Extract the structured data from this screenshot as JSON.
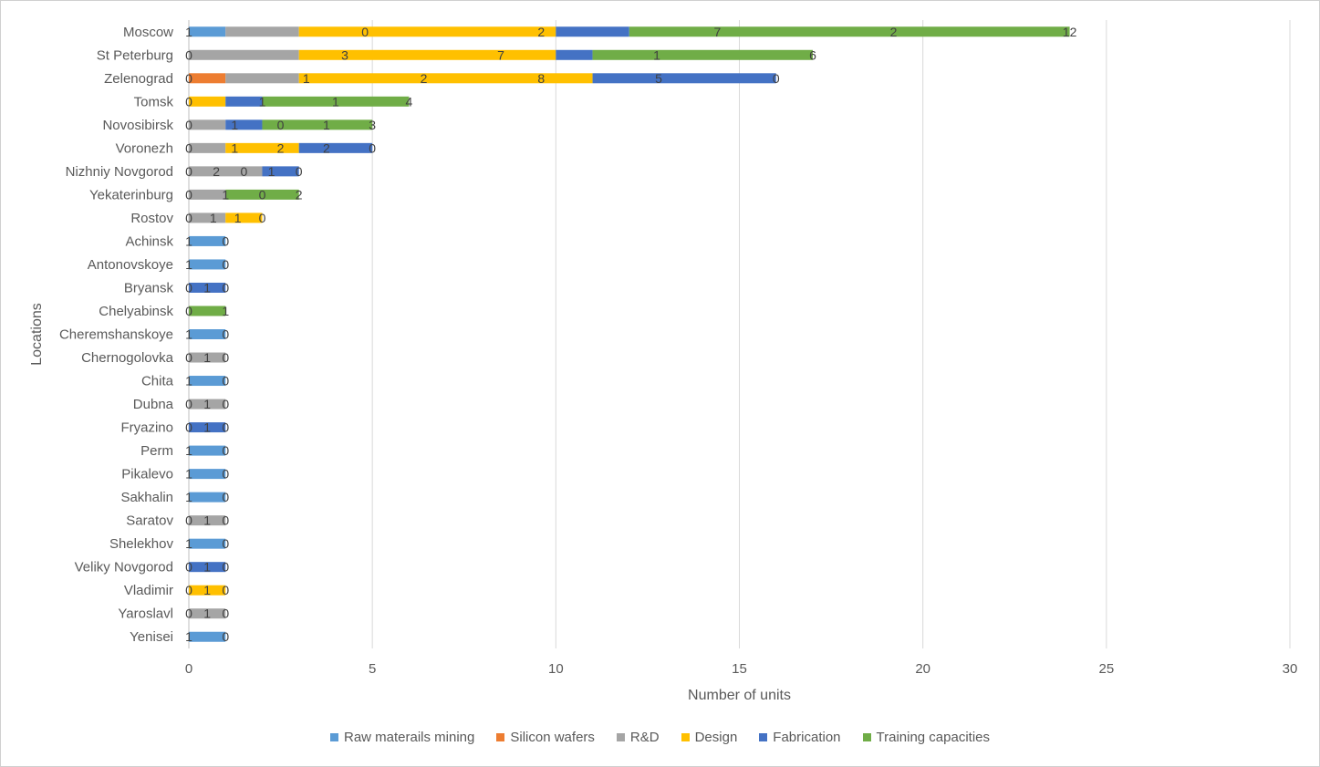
{
  "chart_data": {
    "type": "bar",
    "orientation": "horizontal",
    "stacked": true,
    "title": "",
    "xlabel": "Number of units",
    "ylabel": "Locations",
    "xlim": [
      0,
      30
    ],
    "xticks": [
      0,
      5,
      10,
      15,
      20,
      25,
      30
    ],
    "grid": "vertical",
    "legend_position": "bottom",
    "categories": [
      "Moscow",
      "St Peterburg",
      "Zelenograd",
      "Tomsk",
      "Novosibirsk",
      "Voronezh",
      "Nizhniy Novgorod",
      "Yekaterinburg",
      "Rostov",
      "Achinsk",
      "Antonovskoye",
      "Bryansk",
      "Chelyabinsk",
      "Cheremshanskoye",
      "Chernogolovka",
      "Chita",
      "Dubna",
      "Fryazino",
      "Perm",
      "Pikalevo",
      "Sakhalin",
      "Saratov",
      "Shelekhov",
      "Veliky Novgorod",
      "Vladimir",
      "Yaroslavl",
      "Yenisei"
    ],
    "series": [
      {
        "name": "Raw materails mining",
        "color": "#5b9bd5",
        "values": [
          1,
          0,
          0,
          0,
          0,
          0,
          0,
          0,
          0,
          1,
          1,
          0,
          0,
          1,
          0,
          1,
          0,
          0,
          1,
          1,
          1,
          0,
          1,
          0,
          0,
          0,
          1
        ]
      },
      {
        "name": "Silicon wafers",
        "color": "#ed7d31",
        "values": [
          0,
          0,
          1,
          0,
          0,
          0,
          0,
          0,
          0,
          0,
          0,
          0,
          0,
          0,
          0,
          0,
          0,
          0,
          0,
          0,
          0,
          0,
          0,
          0,
          0,
          0,
          0
        ]
      },
      {
        "name": "R&D",
        "color": "#a5a5a5",
        "values": [
          2,
          3,
          2,
          0,
          1,
          1,
          2,
          1,
          1,
          0,
          0,
          0,
          0,
          0,
          1,
          0,
          1,
          0,
          0,
          0,
          0,
          1,
          0,
          0,
          0,
          1,
          0
        ]
      },
      {
        "name": "Design",
        "color": "#ffc000",
        "values": [
          7,
          7,
          8,
          1,
          0,
          2,
          0,
          0,
          1,
          0,
          0,
          0,
          0,
          0,
          0,
          0,
          0,
          0,
          0,
          0,
          0,
          0,
          0,
          0,
          1,
          0,
          0
        ]
      },
      {
        "name": "Fabrication",
        "color": "#4472c4",
        "values": [
          2,
          1,
          5,
          1,
          1,
          2,
          1,
          0,
          0,
          0,
          0,
          1,
          0,
          0,
          0,
          0,
          0,
          1,
          0,
          0,
          0,
          0,
          0,
          1,
          0,
          0,
          0
        ]
      },
      {
        "name": "Training capacities",
        "color": "#70ad47",
        "values": [
          12,
          6,
          0,
          4,
          3,
          0,
          0,
          2,
          0,
          0,
          0,
          0,
          1,
          0,
          0,
          0,
          0,
          0,
          0,
          0,
          0,
          0,
          0,
          0,
          0,
          0,
          0
        ]
      }
    ],
    "data_labels": [
      [
        "1",
        "0",
        "2",
        "7",
        "2",
        "12"
      ],
      [
        "0",
        "3",
        "7",
        "1",
        "6"
      ],
      [
        "0",
        "1",
        "2",
        "8",
        "5",
        "0"
      ],
      [
        "0",
        "1",
        "1",
        "4"
      ],
      [
        "0",
        "1",
        "0",
        "1",
        "3"
      ],
      [
        "0",
        "1",
        "2",
        "2",
        "0"
      ],
      [
        "0",
        "2",
        "0",
        "1",
        "0"
      ],
      [
        "0",
        "1",
        "0",
        "2"
      ],
      [
        "0",
        "1",
        "1",
        "0"
      ],
      [
        "1",
        "0"
      ],
      [
        "1",
        "0"
      ],
      [
        "0",
        "1",
        "0"
      ],
      [
        "0",
        "1"
      ],
      [
        "1",
        "0"
      ],
      [
        "0",
        "1",
        "0"
      ],
      [
        "1",
        "0"
      ],
      [
        "0",
        "1",
        "0"
      ],
      [
        "0",
        "1",
        "0"
      ],
      [
        "1",
        "0"
      ],
      [
        "1",
        "0"
      ],
      [
        "1",
        "0"
      ],
      [
        "0",
        "1",
        "0"
      ],
      [
        "1",
        "0"
      ],
      [
        "0",
        "1",
        "0"
      ],
      [
        "0",
        "1",
        "0"
      ],
      [
        "0",
        "1",
        "0"
      ],
      [
        "1",
        "0"
      ]
    ]
  }
}
